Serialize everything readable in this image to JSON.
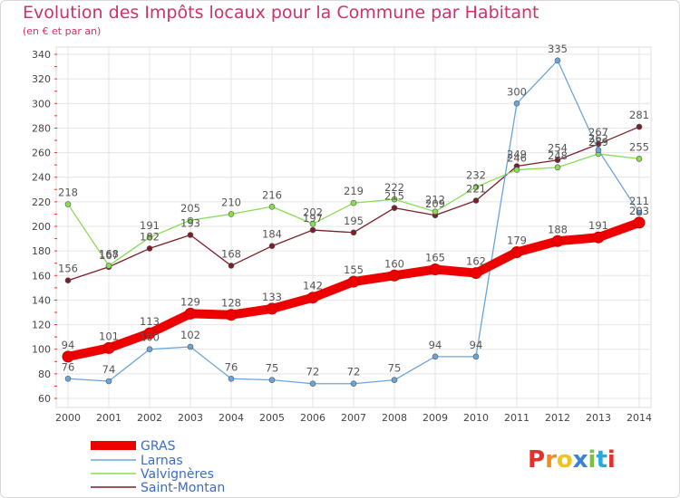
{
  "chart_data": {
    "type": "line",
    "title": "Evolution des Impôts locaux pour la Commune par Habitant",
    "subtitle": "(en € et par an)",
    "x": [
      "2000",
      "2001",
      "2002",
      "2003",
      "2004",
      "2005",
      "2006",
      "2007",
      "2008",
      "2009",
      "2010",
      "2011",
      "2012",
      "2013",
      "2014"
    ],
    "ylim": [
      60,
      340
    ],
    "yticks": [
      60,
      80,
      100,
      120,
      140,
      160,
      180,
      200,
      220,
      240,
      260,
      280,
      300,
      320,
      340
    ],
    "grid": true,
    "legend_position": "bottom-left",
    "series": [
      {
        "name": "GRAS",
        "color": "#ee0000",
        "values": [
          94,
          101,
          113,
          129,
          128,
          133,
          142,
          155,
          160,
          165,
          162,
          179,
          188,
          191,
          203
        ]
      },
      {
        "name": "Larnas",
        "color": "#6aa5d8",
        "values": [
          76,
          74,
          100,
          102,
          76,
          75,
          72,
          72,
          75,
          94,
          94,
          300,
          335,
          262,
          211
        ]
      },
      {
        "name": "Valvignères",
        "color": "#88dd55",
        "values": [
          218,
          168,
          191,
          205,
          210,
          216,
          202,
          219,
          222,
          212,
          232,
          246,
          248,
          259,
          255
        ]
      },
      {
        "name": "Saint-Montan",
        "color": "#7a1f2a",
        "values": [
          156,
          167,
          182,
          193,
          168,
          184,
          197,
          195,
          215,
          209,
          221,
          249,
          254,
          267,
          281
        ]
      }
    ]
  },
  "logo": {
    "text": "Proxiti",
    "letters": [
      "P",
      "r",
      "o",
      "x",
      "i",
      "t",
      "i"
    ]
  }
}
